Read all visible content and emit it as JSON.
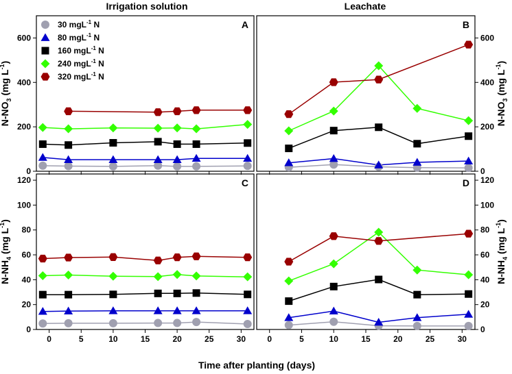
{
  "figure": {
    "col_titles": [
      "Irrigation solution",
      "Leachate"
    ],
    "xlabel": "Time after planting (days)"
  },
  "chart_data": {
    "type": "line",
    "xlim": [
      -2,
      32
    ],
    "xticks": [
      0,
      5,
      10,
      15,
      20,
      25,
      30
    ],
    "series_styles": [
      {
        "name": "30 mgL-1 N",
        "label_main": "30 mgL",
        "label_sup": "-1",
        "label_tail": " N",
        "color": "#a0a0b0",
        "line": "#a0a0b0",
        "marker": "circle"
      },
      {
        "name": "80 mgL-1 N",
        "label_main": "80 mgL",
        "label_sup": "-1",
        "label_tail": " N",
        "color": "#0000cc",
        "line": "#0000cc",
        "marker": "triangle"
      },
      {
        "name": "160 mgL-1 N",
        "label_main": "160 mgL",
        "label_sup": "-1",
        "label_tail": " N",
        "color": "#000000",
        "line": "#000000",
        "marker": "square"
      },
      {
        "name": "240 mgL-1 N",
        "label_main": "240 mgL",
        "label_sup": "-1",
        "label_tail": " N",
        "color": "#33ff00",
        "line": "#33ff00",
        "marker": "diamond"
      },
      {
        "name": "320 mgL-1 N",
        "label_main": "320 mgL",
        "label_sup": "-1",
        "label_tail": " N",
        "color": "#990000",
        "line": "#990000",
        "marker": "hexagon"
      }
    ],
    "panels": [
      {
        "id": "A",
        "letter": "A",
        "column": "Irrigation solution",
        "ylabel": "N-NO3 (mg L-1)",
        "ylim": [
          0,
          700
        ],
        "yticks": [
          0,
          200,
          400,
          600
        ],
        "series": [
          {
            "name": "30 mgL-1 N",
            "x": [
              -1,
              3,
              10,
              17,
              20,
              23,
              31
            ],
            "y": [
              25,
              23,
              22,
              25,
              22,
              22,
              24
            ]
          },
          {
            "name": "80 mgL-1 N",
            "x": [
              -1,
              3,
              10,
              17,
              20,
              23,
              31
            ],
            "y": [
              62,
              52,
              52,
              52,
              52,
              58,
              58
            ]
          },
          {
            "name": "160 mgL-1 N",
            "x": [
              -1,
              3,
              10,
              17,
              20,
              23,
              31
            ],
            "y": [
              122,
              118,
              128,
              133,
              122,
              122,
              127
            ]
          },
          {
            "name": "240 mgL-1 N",
            "x": [
              -1,
              3,
              10,
              17,
              20,
              23,
              31
            ],
            "y": [
              197,
              191,
              195,
              194,
              195,
              191,
              211
            ]
          },
          {
            "name": "320 mgL-1 N",
            "x": [
              3,
              17,
              20,
              23,
              31
            ],
            "y": [
              270,
              266,
              270,
              275,
              275
            ]
          }
        ]
      },
      {
        "id": "B",
        "letter": "B",
        "column": "Leachate",
        "ylabel": "N-NO3 (mg L-1)",
        "ylim": [
          0,
          700
        ],
        "yticks": [
          0,
          200,
          400,
          600
        ],
        "series": [
          {
            "name": "30 mgL-1 N",
            "x": [
              3,
              10,
              17,
              23,
              31
            ],
            "y": [
              18,
              30,
              20,
              16,
              15
            ]
          },
          {
            "name": "80 mgL-1 N",
            "x": [
              3,
              10,
              17,
              23,
              31
            ],
            "y": [
              38,
              57,
              28,
              40,
              46
            ]
          },
          {
            "name": "160 mgL-1 N",
            "x": [
              3,
              10,
              17,
              23,
              31
            ],
            "y": [
              103,
              183,
              198,
              124,
              158
            ]
          },
          {
            "name": "240 mgL-1 N",
            "x": [
              3,
              10,
              17,
              23,
              31
            ],
            "y": [
              182,
              271,
              475,
              283,
              228
            ]
          },
          {
            "name": "320 mgL-1 N",
            "x": [
              3,
              10,
              17,
              31
            ],
            "y": [
              257,
              401,
              413,
              570
            ]
          }
        ]
      },
      {
        "id": "C",
        "letter": "C",
        "column": "Irrigation solution",
        "ylabel": "N-NH4 (mg L-1)",
        "ylim": [
          0,
          125
        ],
        "yticks": [
          0,
          20,
          40,
          60,
          80,
          100,
          120
        ],
        "series": [
          {
            "name": "30 mgL-1 N",
            "x": [
              -1,
              3,
              10,
              17,
              20,
              23,
              31
            ],
            "y": [
              4.8,
              5.0,
              5.0,
              5.2,
              5.2,
              6.0,
              4.4
            ]
          },
          {
            "name": "80 mgL-1 N",
            "x": [
              -1,
              3,
              10,
              17,
              20,
              23,
              31
            ],
            "y": [
              14.5,
              14.8,
              15.0,
              15.0,
              15.0,
              15.0,
              15.0
            ]
          },
          {
            "name": "160 mgL-1 N",
            "x": [
              -1,
              3,
              10,
              17,
              20,
              23,
              31
            ],
            "y": [
              28.0,
              28.0,
              28.2,
              29.0,
              29.0,
              29.3,
              28.2
            ]
          },
          {
            "name": "240 mgL-1 N",
            "x": [
              -1,
              3,
              10,
              17,
              20,
              23,
              31
            ],
            "y": [
              43.2,
              43.8,
              42.8,
              42.5,
              44.2,
              43.0,
              42.3
            ]
          },
          {
            "name": "320 mgL-1 N",
            "x": [
              -1,
              3,
              10,
              17,
              20,
              23,
              31
            ],
            "y": [
              57.0,
              57.8,
              58.2,
              55.5,
              58.0,
              58.8,
              58.0
            ]
          }
        ]
      },
      {
        "id": "D",
        "letter": "D",
        "column": "Leachate",
        "ylabel": "N-NH4 (mg L-1)",
        "ylim": [
          0,
          125
        ],
        "yticks": [
          0,
          20,
          40,
          60,
          80,
          100,
          120
        ],
        "series": [
          {
            "name": "30 mgL-1 N",
            "x": [
              3,
              10,
              17,
              23,
              31
            ],
            "y": [
              3.5,
              6.2,
              3.0,
              2.8,
              2.8
            ]
          },
          {
            "name": "80 mgL-1 N",
            "x": [
              3,
              10,
              17,
              23,
              31
            ],
            "y": [
              9.5,
              14.8,
              5.8,
              9.5,
              12.2
            ]
          },
          {
            "name": "160 mgL-1 N",
            "x": [
              3,
              10,
              17,
              23,
              31
            ],
            "y": [
              22.8,
              34.5,
              40.2,
              28.0,
              28.5
            ]
          },
          {
            "name": "240 mgL-1 N",
            "x": [
              3,
              10,
              17,
              23,
              31
            ],
            "y": [
              39.0,
              52.8,
              78.2,
              47.8,
              44.0
            ]
          },
          {
            "name": "320 mgL-1 N",
            "x": [
              3,
              10,
              17,
              31
            ],
            "y": [
              54.5,
              75.0,
              71.2,
              77.0
            ]
          }
        ]
      }
    ]
  }
}
